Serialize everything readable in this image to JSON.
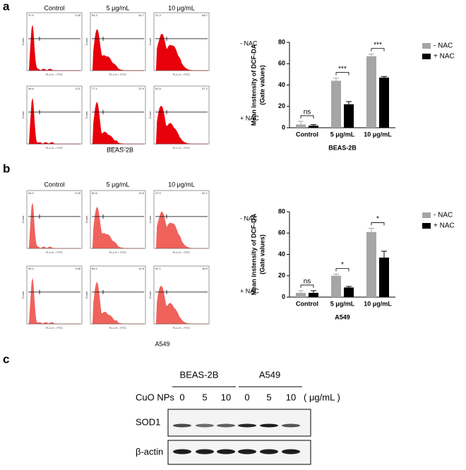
{
  "panel_labels": [
    "a",
    "b",
    "c"
  ],
  "flow": [
    {
      "columns": [
        "Control",
        "5 μg/mL",
        "10 μg/mL"
      ],
      "rows": [
        "- NAC",
        "+ NAC"
      ],
      "gates": [
        [
          [
            "97.9",
            "2.08"
          ],
          [
            "55.3",
            "44.7"
          ],
          [
            "31.3",
            "68.7"
          ]
        ],
        [
          [
            "96.8",
            "3.21"
          ],
          [
            "77.1",
            "22.9"
          ],
          [
            "52.8",
            "47.2"
          ]
        ]
      ],
      "x_axis_label": "FL1-H :: FITC",
      "y_axis_label": "Count",
      "cell_line": "BEAS-2B"
    },
    {
      "columns": [
        "Control",
        "5 μg/mL",
        "10 μg/mL"
      ],
      "rows": [
        "- NAC",
        "+ NAC"
      ],
      "gates": [
        [
          [
            "94.9",
            "5.09"
          ],
          [
            "80.5",
            "19.5"
          ],
          [
            "37.9",
            "62.1"
          ]
        ],
        [
          [
            "96.4",
            "3.56"
          ],
          [
            "89.2",
            "10.8"
          ],
          [
            "61.1",
            "38.9"
          ]
        ]
      ],
      "x_axis_label": "FL1-H :: FITC",
      "y_axis_label": "Count",
      "cell_line": "A549"
    }
  ],
  "chart_data": [
    {
      "type": "bar",
      "y_label": [
        "Mean instensity of DCF-DA",
        "(Gate values)"
      ],
      "x_label": "BEAS-2B",
      "categories": [
        "Control",
        "5 μg/mL",
        "10 μg/mL"
      ],
      "series": [
        {
          "name": "- NAC",
          "color": "#a6a6a6",
          "values": [
            3,
            44,
            67
          ],
          "errors": [
            3,
            2.5,
            2
          ]
        },
        {
          "name": "+ NAC",
          "color": "#000000",
          "values": [
            2,
            22,
            47
          ],
          "errors": [
            1,
            2.5,
            1
          ]
        }
      ],
      "annotations": [
        "ns",
        "***",
        "***"
      ],
      "ylim": [
        0,
        80
      ],
      "yticks": [
        0,
        20,
        40,
        60,
        80
      ],
      "legend": "right"
    },
    {
      "type": "bar",
      "y_label": [
        "Mean instensity of DCF-DA",
        "(Gate values)"
      ],
      "x_label": "A549",
      "categories": [
        "Control",
        "5 μg/mL",
        "10 μg/mL"
      ],
      "series": [
        {
          "name": "- NAC",
          "color": "#a6a6a6",
          "values": [
            4,
            20,
            61
          ],
          "errors": [
            2,
            1.5,
            3.5
          ]
        },
        {
          "name": "+ NAC",
          "color": "#000000",
          "values": [
            4,
            9,
            37
          ],
          "errors": [
            2,
            1,
            6
          ]
        }
      ],
      "annotations": [
        "ns",
        "*",
        "*"
      ],
      "ylim": [
        0,
        80
      ],
      "yticks": [
        0,
        20,
        40,
        60,
        80
      ],
      "legend": "right"
    }
  ],
  "blot": {
    "groups": [
      "BEAS-2B",
      "A549"
    ],
    "treatment": "CuO NPs",
    "lanes": [
      "0",
      "5",
      "10",
      "0",
      "5",
      "10"
    ],
    "unit": "( μg/mL )",
    "proteins": [
      "SOD1",
      "β-actin"
    ]
  }
}
